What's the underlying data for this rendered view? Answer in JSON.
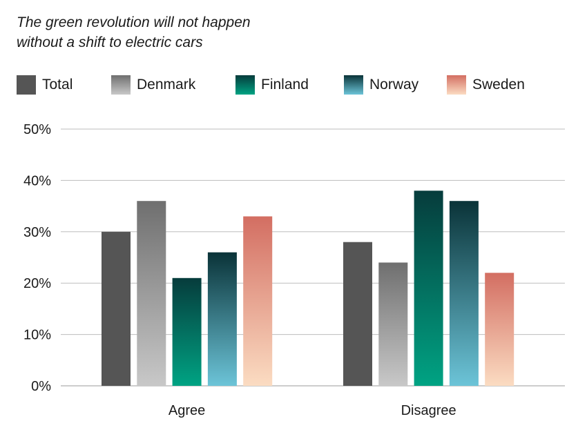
{
  "title_line1": "The green revolution will not happen",
  "title_line2": "without a shift to electric cars",
  "chart_data": {
    "type": "bar",
    "title": "The green revolution will not happen without a shift to electric cars",
    "categories": [
      "Agree",
      "Disagree"
    ],
    "ylim": [
      0,
      50
    ],
    "yticks": [
      0,
      10,
      20,
      30,
      40,
      50
    ],
    "ytick_labels": [
      "0%",
      "10%",
      "20%",
      "30%",
      "40%",
      "50%"
    ],
    "grid": true,
    "legend_position": "top",
    "series": [
      {
        "name": "Total",
        "values": [
          30,
          28
        ],
        "color_top": "#555555",
        "color_bottom": "#555555"
      },
      {
        "name": "Denmark",
        "values": [
          36,
          24
        ],
        "color_top": "#6f6f6f",
        "color_bottom": "#c8c8c8"
      },
      {
        "name": "Finland",
        "values": [
          21,
          38
        ],
        "color_top": "#063c3c",
        "color_bottom": "#00a383"
      },
      {
        "name": "Norway",
        "values": [
          26,
          36
        ],
        "color_top": "#0a3338",
        "color_bottom": "#6cc4d8"
      },
      {
        "name": "Sweden",
        "values": [
          33,
          22
        ],
        "color_top": "#d36e62",
        "color_bottom": "#fbdcc2"
      }
    ]
  }
}
